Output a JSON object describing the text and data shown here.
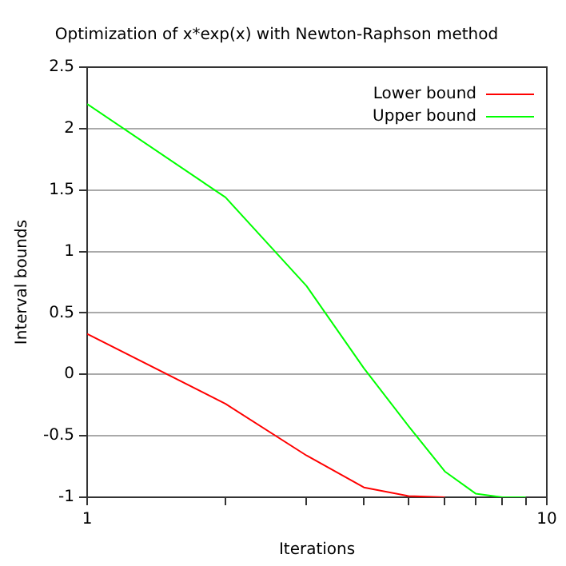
{
  "chart_data": {
    "type": "line",
    "title": "Optimization of x*exp(x) with Newton-Raphson method",
    "xlabel": "Iterations",
    "ylabel": "Interval bounds",
    "log": "x",
    "x": [
      1,
      2,
      3,
      4,
      5,
      6,
      7,
      8,
      9
    ],
    "series": [
      {
        "name": "Lower bound",
        "color": "#ff0000",
        "values": [
          0.33,
          -0.24,
          -0.66,
          -0.92,
          -0.99,
          -1,
          null,
          null,
          null
        ]
      },
      {
        "name": "Upper bound",
        "color": "#00ff00",
        "values": [
          2.2,
          1.44,
          0.72,
          0.05,
          -0.42,
          -0.79,
          -0.97,
          -1,
          -1
        ]
      }
    ],
    "xlim": [
      1,
      10
    ],
    "xticks": [
      1,
      {
        "value": 2,
        "label": null
      },
      {
        "value": 3,
        "label": null
      },
      {
        "value": 4,
        "label": null
      },
      {
        "value": 5,
        "label": null
      },
      {
        "value": 6,
        "label": null
      },
      {
        "value": 7,
        "label": null
      },
      {
        "value": 8,
        "label": null
      },
      {
        "value": 9,
        "label": null
      },
      10
    ],
    "ylim": [
      -1,
      2.5
    ],
    "yticks": [
      -1,
      -0.5,
      0,
      0.5,
      1,
      1.5,
      2,
      2.5
    ],
    "grid": "y",
    "legend": "top right",
    "marker": "none",
    "line_style": "solid"
  }
}
